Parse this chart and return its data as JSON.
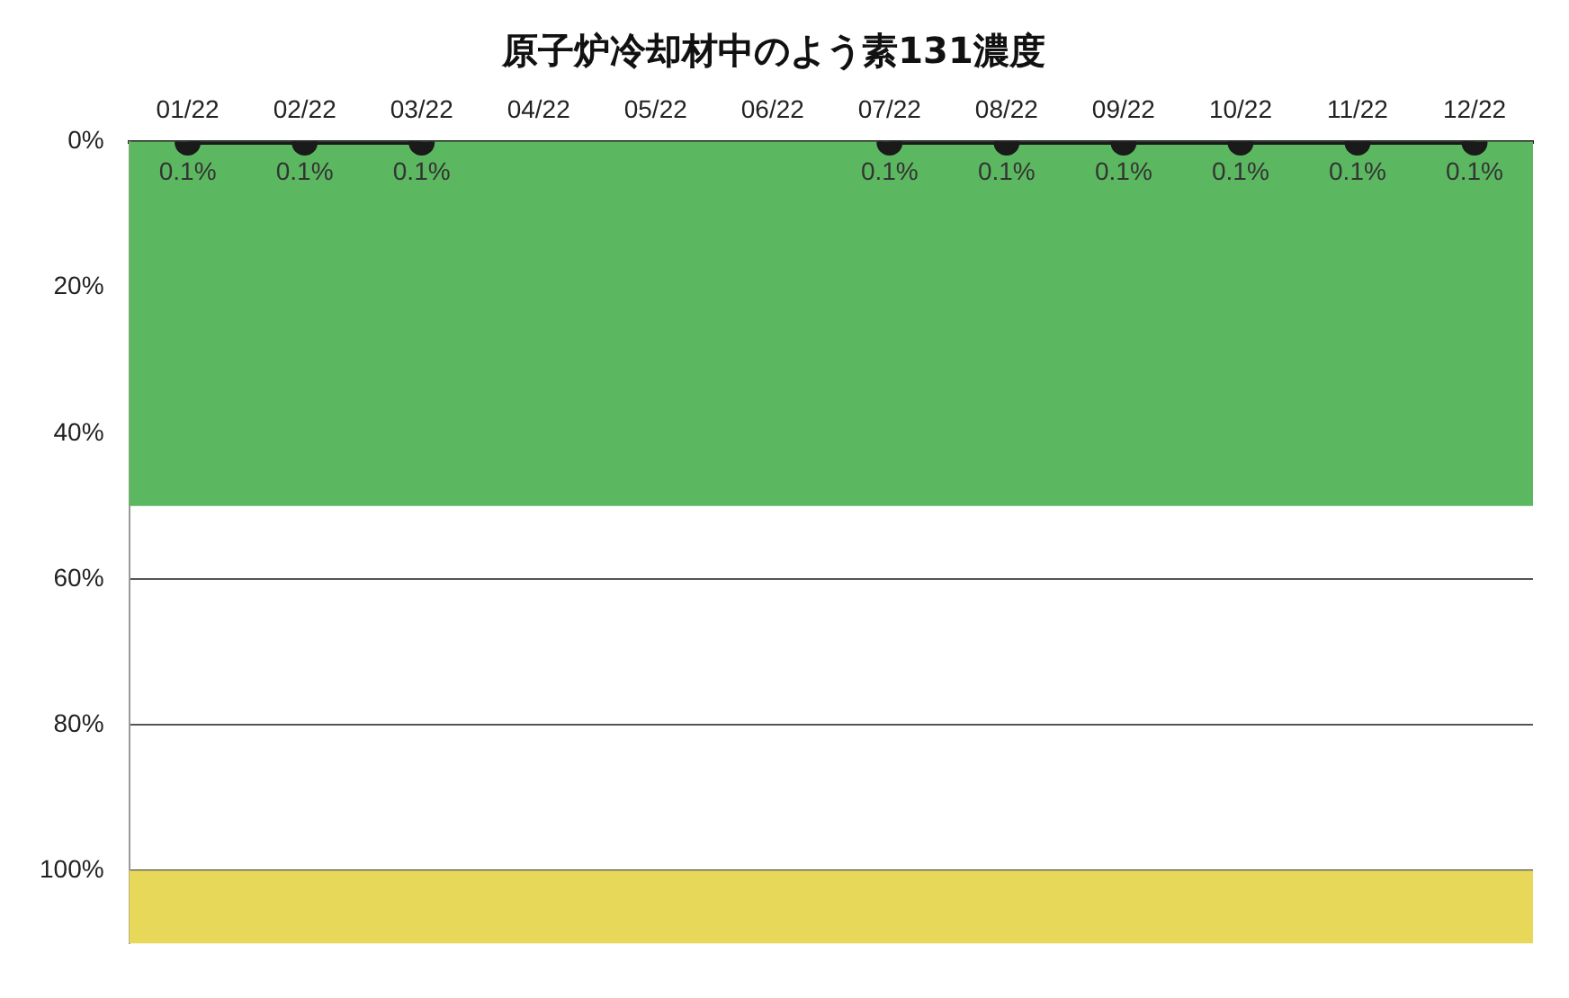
{
  "chart_data": {
    "type": "line",
    "title": "原子炉冷却材中のよう素131濃度",
    "categories": [
      "01/22",
      "02/22",
      "03/22",
      "04/22",
      "05/22",
      "06/22",
      "07/22",
      "08/22",
      "09/22",
      "10/22",
      "11/22",
      "12/22"
    ],
    "series": [
      {
        "color": "#1a1a1a",
        "values": [
          0.1,
          0.1,
          0.1,
          null,
          null,
          null,
          0.1,
          0.1,
          0.1,
          0.1,
          0.1,
          0.1
        ],
        "value_labels": [
          "0.1%",
          "0.1%",
          "0.1%",
          null,
          null,
          null,
          "0.1%",
          "0.1%",
          "0.1%",
          "0.1%",
          "0.1%",
          "0.1%"
        ]
      }
    ],
    "ylim": [
      110,
      0
    ],
    "yticks": [
      {
        "value": 0,
        "label": "0%"
      },
      {
        "value": 20,
        "label": "20%"
      },
      {
        "value": 40,
        "label": "40%"
      },
      {
        "value": 60,
        "label": "60%"
      },
      {
        "value": 80,
        "label": "80%"
      },
      {
        "value": 100,
        "label": "100%"
      }
    ],
    "bands": [
      {
        "axis": "y",
        "from": 0,
        "to": 50,
        "color": "#5cb860"
      },
      {
        "axis": "y",
        "from": 100,
        "to": 110,
        "color": "#e8d85a"
      }
    ],
    "grid": "y",
    "marker": "circle",
    "line_style": "solid",
    "legend": false
  }
}
